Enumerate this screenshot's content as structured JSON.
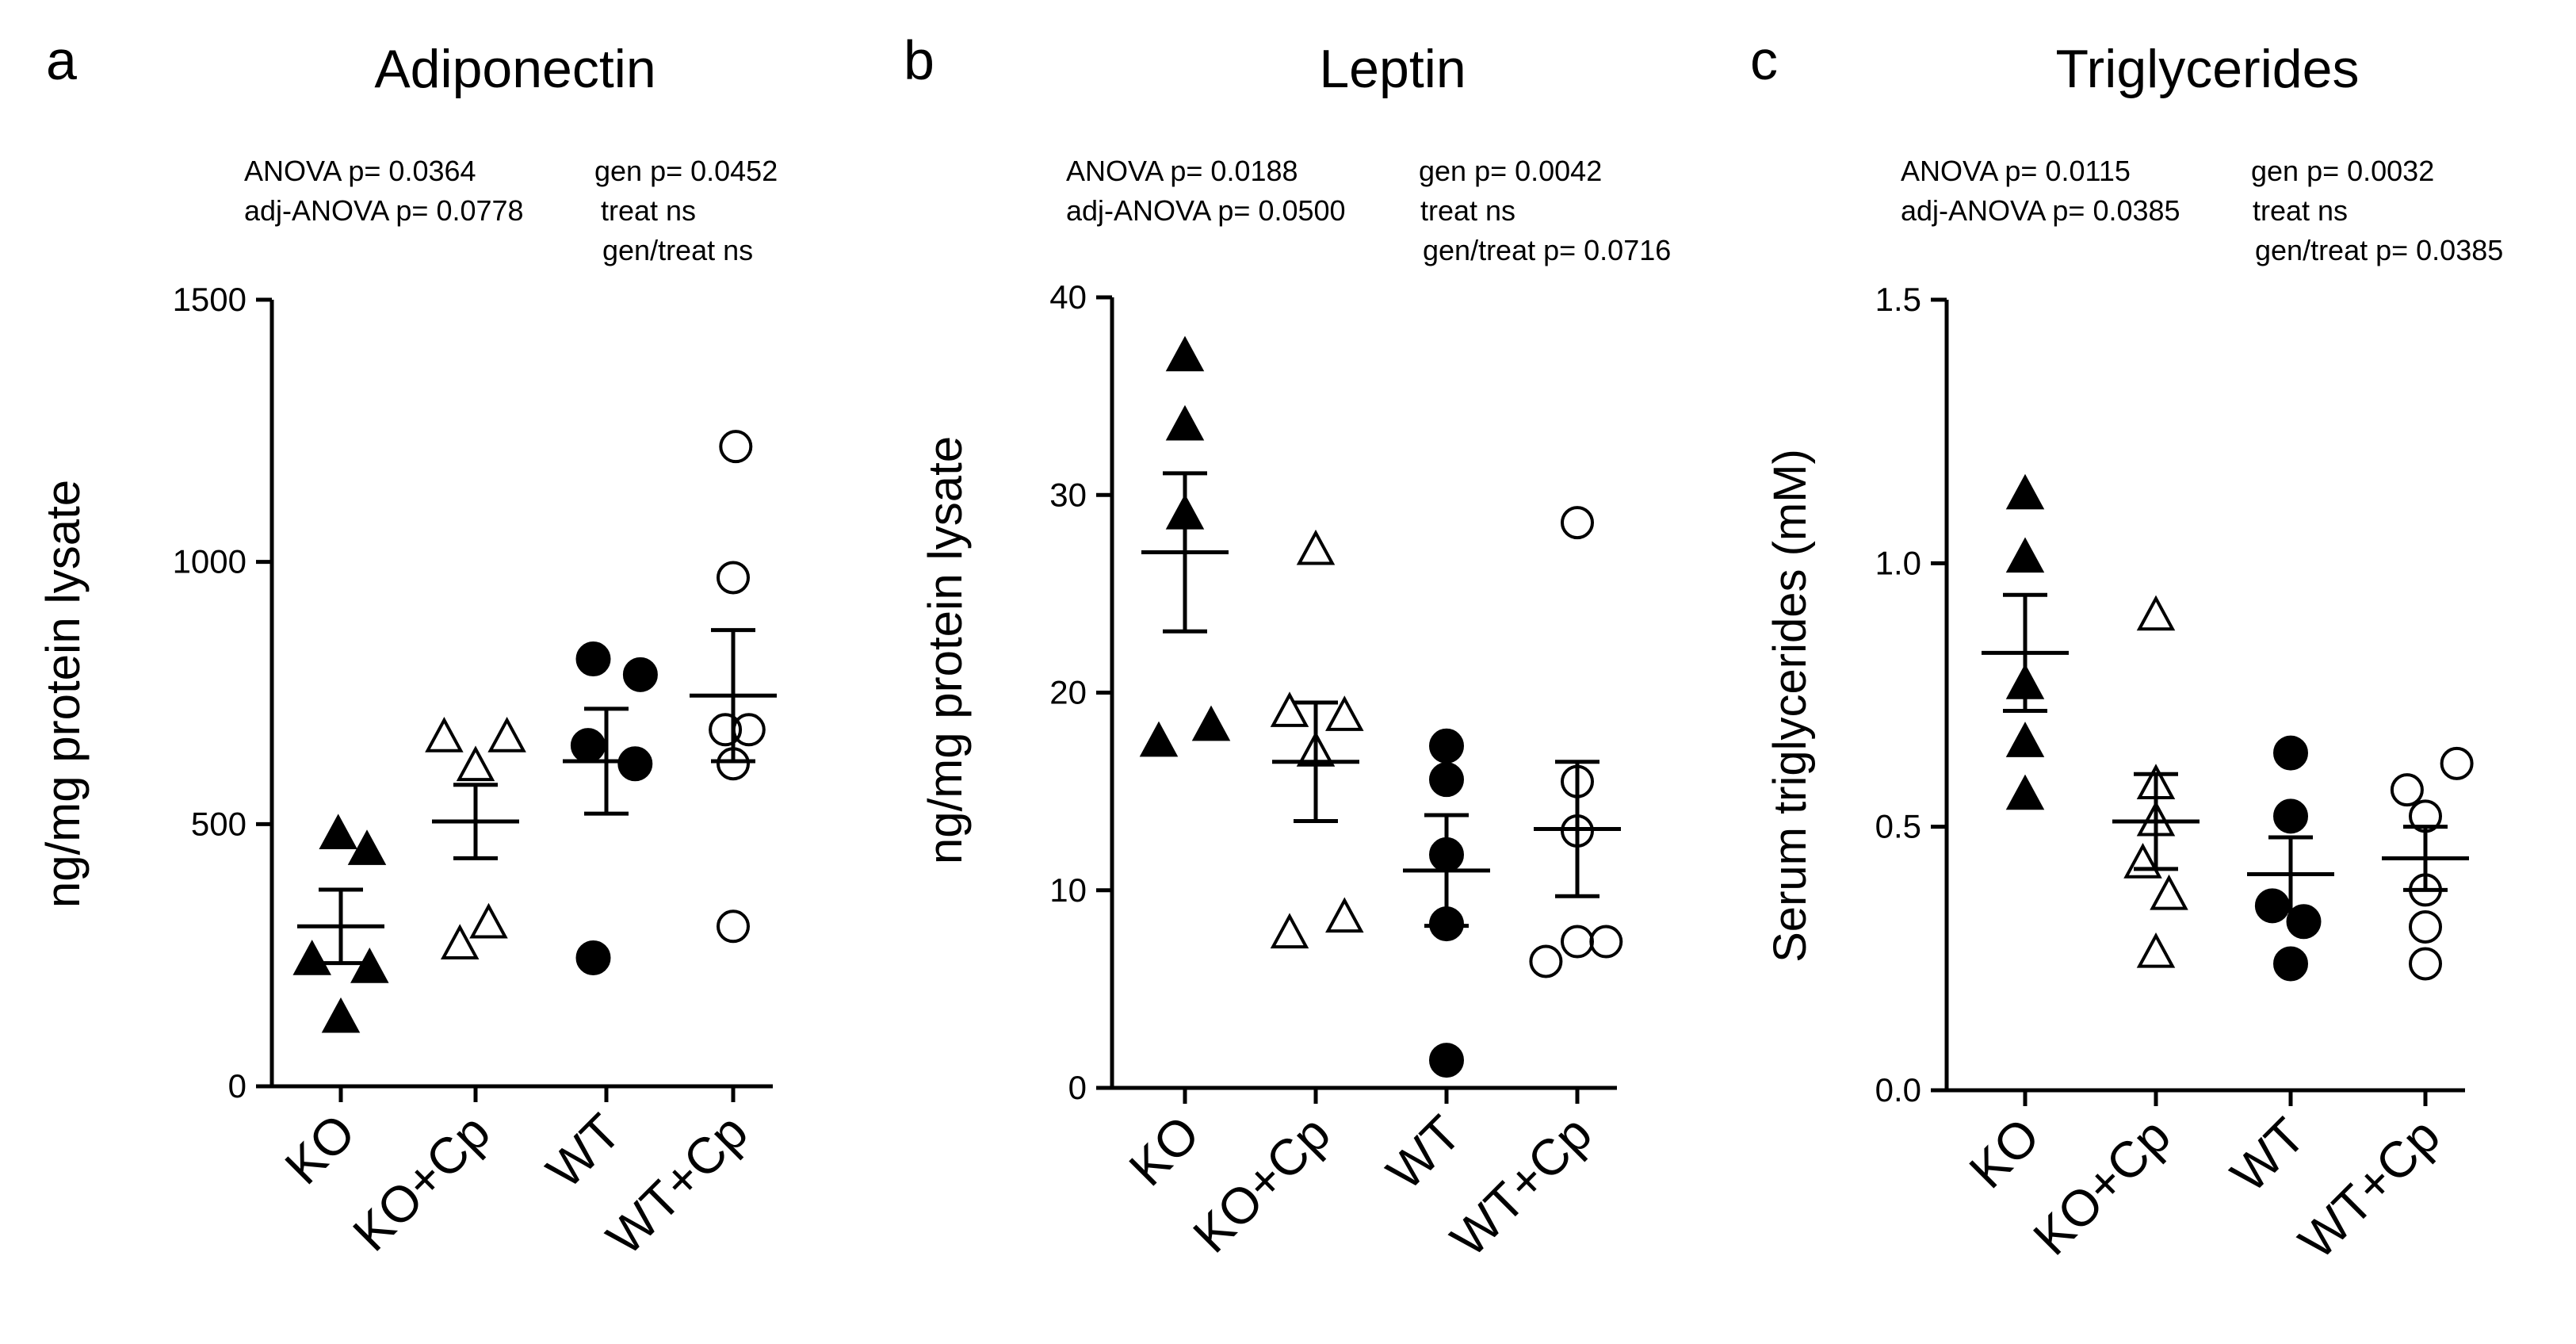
{
  "chart_data": [
    {
      "panel_letter": "a",
      "type": "scatter",
      "title": "Adiponectin",
      "ylabel": "ng/mg protein lysate",
      "ylim": [
        0,
        1500
      ],
      "yticks": [
        0,
        500,
        1000,
        1500
      ],
      "categories": [
        "KO",
        "KO+Cp",
        "WT",
        "WT+Cp"
      ],
      "stats": {
        "anova": "ANOVA p= 0.0364",
        "adj_anova": "adj-ANOVA p= 0.0778",
        "gen": "gen p= 0.0452",
        "treat": "treat  ns",
        "gen_treat": "gen/treat  ns"
      },
      "series": [
        {
          "name": "KO",
          "marker": "triangle-filled",
          "points": [
            [
              -0.02,
              480
            ],
            [
              0.2,
              450
            ],
            [
              -0.22,
              240
            ],
            [
              0.22,
              225
            ],
            [
              0.0,
              130
            ]
          ],
          "mean": 305,
          "sem": 70
        },
        {
          "name": "KO+Cp",
          "marker": "triangle-open",
          "points": [
            [
              -0.24,
              665
            ],
            [
              0.24,
              665
            ],
            [
              0.0,
              610
            ],
            [
              -0.12,
              270
            ],
            [
              0.1,
              310
            ]
          ],
          "mean": 505,
          "sem": 70
        },
        {
          "name": "WT",
          "marker": "circle-filled",
          "points": [
            [
              -0.1,
              815
            ],
            [
              0.26,
              785
            ],
            [
              -0.14,
              650
            ],
            [
              0.22,
              615
            ],
            [
              -0.1,
              245
            ]
          ],
          "mean": 620,
          "sem": 100
        },
        {
          "name": "WT+Cp",
          "marker": "circle-open",
          "points": [
            [
              0.02,
              1220
            ],
            [
              0.0,
              970
            ],
            [
              -0.06,
              680
            ],
            [
              0.12,
              680
            ],
            [
              0.0,
              615
            ],
            [
              0.0,
              305
            ]
          ],
          "mean": 745,
          "sem": 125
        }
      ]
    },
    {
      "panel_letter": "b",
      "type": "scatter",
      "title": "Leptin",
      "ylabel": "ng/mg protein lysate",
      "ylim": [
        0,
        40
      ],
      "yticks": [
        0,
        10,
        20,
        30,
        40
      ],
      "categories": [
        "KO",
        "KO+Cp",
        "WT",
        "WT+Cp"
      ],
      "stats": {
        "anova": "ANOVA p= 0.0188",
        "adj_anova": "adj-ANOVA p= 0.0500",
        "gen": "gen p= 0.0042",
        "treat": "treat  ns",
        "gen_treat": "gen/treat  p= 0.0716"
      },
      "series": [
        {
          "name": "KO",
          "marker": "triangle-filled",
          "points": [
            [
              0.0,
              37.0
            ],
            [
              0.0,
              33.5
            ],
            [
              0.0,
              29.0
            ],
            [
              -0.2,
              17.5
            ],
            [
              0.2,
              18.3
            ]
          ],
          "mean": 27.1,
          "sem": 4.0
        },
        {
          "name": "KO+Cp",
          "marker": "triangle-open",
          "points": [
            [
              0.0,
              27.2
            ],
            [
              -0.2,
              19.0
            ],
            [
              0.22,
              18.8
            ],
            [
              0.0,
              17.0
            ],
            [
              -0.2,
              7.8
            ],
            [
              0.22,
              8.6
            ]
          ],
          "mean": 16.5,
          "sem": 3.0
        },
        {
          "name": "WT",
          "marker": "circle-filled",
          "points": [
            [
              0.0,
              17.3
            ],
            [
              0.0,
              15.6
            ],
            [
              0.0,
              11.8
            ],
            [
              0.0,
              8.3
            ],
            [
              0.0,
              1.4
            ]
          ],
          "mean": 11.0,
          "sem": 2.8
        },
        {
          "name": "WT+Cp",
          "marker": "circle-open",
          "points": [
            [
              0.0,
              28.6
            ],
            [
              0.0,
              15.5
            ],
            [
              0.0,
              13.0
            ],
            [
              -0.24,
              6.4
            ],
            [
              0.0,
              7.4
            ],
            [
              0.22,
              7.4
            ]
          ],
          "mean": 13.1,
          "sem": 3.4
        }
      ]
    },
    {
      "panel_letter": "c",
      "type": "scatter",
      "title": "Triglycerides",
      "ylabel": "Serum triglycerides (mM)",
      "ylim": [
        0.0,
        1.5
      ],
      "yticks": [
        "0.0",
        "0.5",
        "1.0",
        "1.5"
      ],
      "categories": [
        "KO",
        "KO+Cp",
        "WT",
        "WT+Cp"
      ],
      "stats": {
        "anova": "ANOVA p= 0.0115",
        "adj_anova": "adj-ANOVA p= 0.0385",
        "gen": "gen p= 0.0032",
        "treat": "treat  ns",
        "gen_treat": "gen/treat  p= 0.0385"
      },
      "series": [
        {
          "name": "KO",
          "marker": "triangle-filled",
          "points": [
            [
              0.0,
              1.13
            ],
            [
              0.0,
              1.01
            ],
            [
              0.0,
              0.77
            ],
            [
              0.0,
              0.66
            ],
            [
              0.0,
              0.56
            ]
          ],
          "mean": 0.83,
          "sem": 0.11
        },
        {
          "name": "KO+Cp",
          "marker": "triangle-open",
          "points": [
            [
              0.0,
              0.9
            ],
            [
              0.0,
              0.58
            ],
            [
              0.0,
              0.51
            ],
            [
              -0.1,
              0.43
            ],
            [
              0.1,
              0.37
            ],
            [
              0.0,
              0.26
            ]
          ],
          "mean": 0.51,
          "sem": 0.09
        },
        {
          "name": "WT",
          "marker": "circle-filled",
          "points": [
            [
              0.0,
              0.64
            ],
            [
              0.0,
              0.52
            ],
            [
              -0.14,
              0.35
            ],
            [
              0.1,
              0.32
            ],
            [
              0.0,
              0.24
            ]
          ],
          "mean": 0.41,
          "sem": 0.07
        },
        {
          "name": "WT+Cp",
          "marker": "circle-open",
          "points": [
            [
              -0.14,
              0.57
            ],
            [
              0.24,
              0.62
            ],
            [
              0.0,
              0.52
            ],
            [
              0.0,
              0.38
            ],
            [
              0.0,
              0.31
            ],
            [
              0.0,
              0.24
            ]
          ],
          "mean": 0.44,
          "sem": 0.06
        }
      ]
    }
  ]
}
